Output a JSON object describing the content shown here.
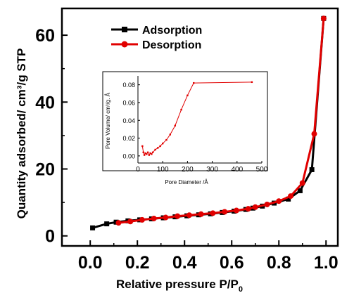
{
  "colors": {
    "adsorption": "#000000",
    "desorption": "#e10000",
    "inset_line": "#e10000",
    "axes": "#000000"
  },
  "chart_data": [
    {
      "type": "line",
      "title": "",
      "xlabel": "Relative pressure P/P",
      "xlabel_sub": "0",
      "ylabel": "Quantity adsorbed/ cm³/g STP",
      "xlim": [
        -0.12,
        1.05
      ],
      "ylim": [
        -3,
        68
      ],
      "xticks": [
        "0.0",
        "0.2",
        "0.4",
        "0.6",
        "0.8",
        "1.0"
      ],
      "xtick_values": [
        0,
        0.2,
        0.4,
        0.6,
        0.8,
        1.0
      ],
      "yticks": [
        "0",
        "20",
        "40",
        "60"
      ],
      "ytick_values": [
        0,
        20,
        40,
        60
      ],
      "legend_position": "top-left",
      "grid": false,
      "series": [
        {
          "name": "Adsorption",
          "marker": "square",
          "x": [
            0.01,
            0.07,
            0.11,
            0.16,
            0.21,
            0.26,
            0.31,
            0.36,
            0.41,
            0.46,
            0.51,
            0.56,
            0.61,
            0.66,
            0.69,
            0.73,
            0.78,
            0.84,
            0.89,
            0.94,
            0.99
          ],
          "y": [
            2.4,
            3.6,
            4.1,
            4.5,
            4.8,
            5.1,
            5.4,
            5.7,
            6.0,
            6.3,
            6.6,
            7.0,
            7.4,
            7.9,
            8.3,
            8.9,
            9.8,
            11.0,
            13.5,
            19.8,
            65.0
          ]
        },
        {
          "name": "Desorption",
          "marker": "circle",
          "x": [
            0.99,
            0.95,
            0.9,
            0.85,
            0.8,
            0.75,
            0.7,
            0.67,
            0.62,
            0.57,
            0.52,
            0.47,
            0.42,
            0.37,
            0.32,
            0.27,
            0.22,
            0.17,
            0.12
          ],
          "y": [
            65.0,
            30.5,
            15.8,
            11.9,
            10.4,
            9.4,
            8.6,
            8.1,
            7.6,
            7.2,
            6.8,
            6.5,
            6.2,
            5.9,
            5.5,
            5.2,
            4.8,
            4.3,
            3.9
          ]
        }
      ]
    },
    {
      "type": "line",
      "title": "",
      "xlabel": "Pore Diameter /Å",
      "ylabel": "Pore Volume/ cm³/g. Å",
      "xlim": [
        0,
        500
      ],
      "ylim": [
        -0.008,
        0.09
      ],
      "xticks": [
        "0",
        "100",
        "200",
        "300",
        "400",
        "500"
      ],
      "xtick_values": [
        0,
        100,
        200,
        300,
        400,
        500
      ],
      "yticks": [
        "0.00",
        "0.02",
        "0.04",
        "0.06",
        "0.08"
      ],
      "ytick_values": [
        0,
        0.02,
        0.04,
        0.06,
        0.08
      ],
      "grid": false,
      "series": [
        {
          "x": [
            18,
            22,
            26,
            30,
            35,
            40,
            45,
            50,
            55,
            60,
            70,
            80,
            90,
            100,
            115,
            130,
            150,
            175,
            200,
            225,
            460
          ],
          "y": [
            0.011,
            0.004,
            0.001,
            0.003,
            0.002,
            0.004,
            0.001,
            0.003,
            0.002,
            0.004,
            0.007,
            0.009,
            0.011,
            0.014,
            0.018,
            0.024,
            0.034,
            0.052,
            0.068,
            0.082,
            0.083
          ]
        }
      ]
    }
  ]
}
